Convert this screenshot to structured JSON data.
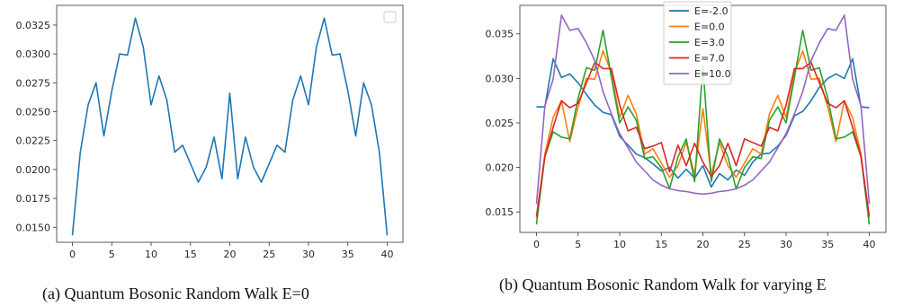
{
  "captions": {
    "a": "(a) Quantum Bosonic Random Walk E=0",
    "b": "(b) Quantum Bosonic Random Walk for varying E"
  },
  "chart_data": [
    {
      "type": "line",
      "title": "",
      "xlabel": "",
      "ylabel": "",
      "xlim": [
        -2,
        42
      ],
      "ylim": [
        0.0137,
        0.0342
      ],
      "xticks": [
        0,
        5,
        10,
        15,
        20,
        25,
        30,
        35,
        40
      ],
      "yticks": [
        0.015,
        0.0175,
        0.02,
        0.0225,
        0.025,
        0.0275,
        0.03,
        0.0325
      ],
      "ytick_labels": [
        "0.0150",
        "0.0175",
        "0.0200",
        "0.0225",
        "0.0250",
        "0.0275",
        "0.0300",
        "0.0325"
      ],
      "legend": "top-right (empty box)",
      "series": [
        {
          "color": "#1f77b4",
          "x": [
            0,
            1,
            2,
            3,
            4,
            5,
            6,
            7,
            8,
            9,
            10,
            11,
            12,
            13,
            14,
            15,
            16,
            17,
            18,
            19,
            20,
            21,
            22,
            23,
            24,
            25,
            26,
            27,
            28,
            29,
            30,
            31,
            32,
            33,
            34,
            35,
            36,
            37,
            38,
            39,
            40
          ],
          "values": [
            0.0143,
            0.0215,
            0.0256,
            0.0275,
            0.0229,
            0.0268,
            0.03,
            0.0299,
            0.0331,
            0.0306,
            0.0256,
            0.0281,
            0.026,
            0.0215,
            0.0221,
            0.0205,
            0.0189,
            0.0202,
            0.0228,
            0.0192,
            0.0266,
            0.0192,
            0.0228,
            0.0202,
            0.0189,
            0.0205,
            0.0221,
            0.0215,
            0.026,
            0.0281,
            0.0256,
            0.0306,
            0.0331,
            0.0299,
            0.03,
            0.0268,
            0.0229,
            0.0275,
            0.0256,
            0.0215,
            0.0143
          ]
        }
      ]
    },
    {
      "type": "line",
      "title": "",
      "xlabel": "",
      "ylabel": "",
      "xlim": [
        -2,
        42
      ],
      "ylim": [
        0.0127,
        0.0382
      ],
      "xticks": [
        0,
        5,
        10,
        15,
        20,
        25,
        30,
        35,
        40
      ],
      "yticks": [
        0.015,
        0.02,
        0.025,
        0.03,
        0.035
      ],
      "ytick_labels": [
        "0.015",
        "0.020",
        "0.025",
        "0.030",
        "0.035"
      ],
      "legend": "top-center",
      "series": [
        {
          "name": "E=-2.0",
          "color": "#1f77b4",
          "values": [
            0.0268,
            0.0268,
            0.0322,
            0.0301,
            0.0305,
            0.0295,
            0.0282,
            0.027,
            0.0262,
            0.0259,
            0.0235,
            0.0225,
            0.0215,
            0.0211,
            0.0204,
            0.0196,
            0.02,
            0.0188,
            0.0198,
            0.0188,
            0.0202,
            0.0178,
            0.0193,
            0.0186,
            0.0197,
            0.0191,
            0.0206,
            0.0215,
            0.0216,
            0.0224,
            0.0236,
            0.0258,
            0.0263,
            0.0275,
            0.029,
            0.03,
            0.0305,
            0.03,
            0.0322,
            0.0268,
            0.0267
          ]
        },
        {
          "name": "E=0.0",
          "color": "#ff7f0e",
          "values": [
            0.0143,
            0.0215,
            0.0256,
            0.0275,
            0.0229,
            0.0268,
            0.03,
            0.0299,
            0.0331,
            0.0306,
            0.0256,
            0.0281,
            0.026,
            0.0215,
            0.0221,
            0.0205,
            0.0189,
            0.0202,
            0.0228,
            0.0192,
            0.0266,
            0.0192,
            0.0228,
            0.0202,
            0.0189,
            0.0205,
            0.0221,
            0.0215,
            0.026,
            0.0281,
            0.0256,
            0.0306,
            0.0331,
            0.0299,
            0.03,
            0.0268,
            0.0229,
            0.0275,
            0.0256,
            0.0215,
            0.0143
          ]
        },
        {
          "name": "E=3.0",
          "color": "#2ca02c",
          "values": [
            0.0136,
            0.0212,
            0.024,
            0.0234,
            0.0232,
            0.0278,
            0.0312,
            0.0309,
            0.0354,
            0.0301,
            0.025,
            0.0268,
            0.0253,
            0.021,
            0.0212,
            0.02,
            0.0176,
            0.0212,
            0.0232,
            0.0184,
            0.0314,
            0.0184,
            0.0232,
            0.0212,
            0.0176,
            0.02,
            0.0212,
            0.021,
            0.0253,
            0.0268,
            0.025,
            0.0301,
            0.0354,
            0.0309,
            0.0312,
            0.0278,
            0.0232,
            0.0234,
            0.024,
            0.0212,
            0.0136
          ]
        },
        {
          "name": "E=7.0",
          "color": "#d62728",
          "values": [
            0.0145,
            0.0212,
            0.0245,
            0.0275,
            0.0267,
            0.0272,
            0.0295,
            0.0318,
            0.0311,
            0.0311,
            0.027,
            0.0241,
            0.0245,
            0.0221,
            0.0224,
            0.0228,
            0.0195,
            0.0225,
            0.0202,
            0.0227,
            0.0206,
            0.019,
            0.0202,
            0.0227,
            0.0202,
            0.0232,
            0.0228,
            0.0224,
            0.0245,
            0.0241,
            0.027,
            0.0311,
            0.0311,
            0.0318,
            0.0295,
            0.0272,
            0.0267,
            0.0275,
            0.0245,
            0.0212,
            0.0145
          ]
        },
        {
          "name": "E=10.0",
          "color": "#9467bd",
          "values": [
            0.0159,
            0.0269,
            0.0299,
            0.0371,
            0.0354,
            0.0356,
            0.034,
            0.032,
            0.0285,
            0.026,
            0.0238,
            0.0222,
            0.0206,
            0.0196,
            0.0186,
            0.018,
            0.0176,
            0.0174,
            0.0173,
            0.0171,
            0.017,
            0.0171,
            0.0173,
            0.0174,
            0.0176,
            0.018,
            0.0186,
            0.0196,
            0.0206,
            0.0222,
            0.0238,
            0.026,
            0.0285,
            0.032,
            0.034,
            0.0356,
            0.0354,
            0.0371,
            0.0299,
            0.0269,
            0.0159
          ]
        }
      ]
    }
  ]
}
